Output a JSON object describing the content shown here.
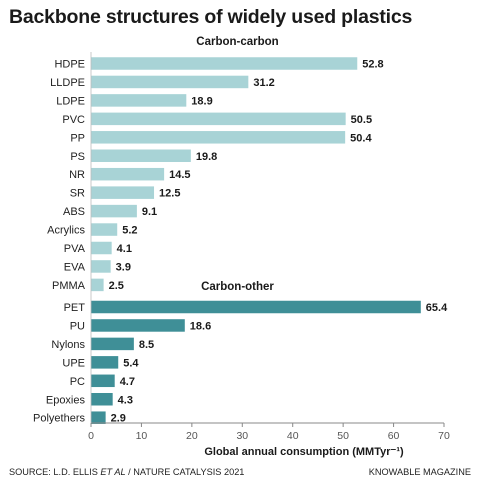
{
  "title": "Backbone structures of widely used plastics",
  "source": {
    "prefix": "SOURCE: L.D. ELLIS ",
    "et_al": "ET AL",
    "journal": " / NATURE CATALYSIS",
    "year": " 2021"
  },
  "brand": "KNOWABLE MAGAZINE",
  "colors": {
    "carbon_carbon": "#a8d3d6",
    "carbon_other": "#3f8f97",
    "axis": "#888888"
  },
  "chart_data": {
    "type": "bar",
    "orientation": "horizontal",
    "xlabel": "Global annual consumption (MMTyr⁻¹)",
    "xlim": [
      0,
      70
    ],
    "xticks": [
      0,
      10,
      20,
      30,
      40,
      50,
      60,
      70
    ],
    "grid": false,
    "groups": [
      {
        "name": "Carbon-carbon",
        "categories": [
          "HDPE",
          "LLDPE",
          "LDPE",
          "PVC",
          "PP",
          "PS",
          "NR",
          "SR",
          "ABS",
          "Acrylics",
          "PVA",
          "EVA",
          "PMMA"
        ],
        "values": [
          52.8,
          31.2,
          18.9,
          50.5,
          50.4,
          19.8,
          14.5,
          12.5,
          9.1,
          5.2,
          4.1,
          3.9,
          2.5
        ]
      },
      {
        "name": "Carbon-other",
        "categories": [
          "PET",
          "PU",
          "Nylons",
          "UPE",
          "PC",
          "Epoxies",
          "Polyethers"
        ],
        "values": [
          65.4,
          18.6,
          8.5,
          5.4,
          4.7,
          4.3,
          2.9
        ]
      }
    ]
  }
}
